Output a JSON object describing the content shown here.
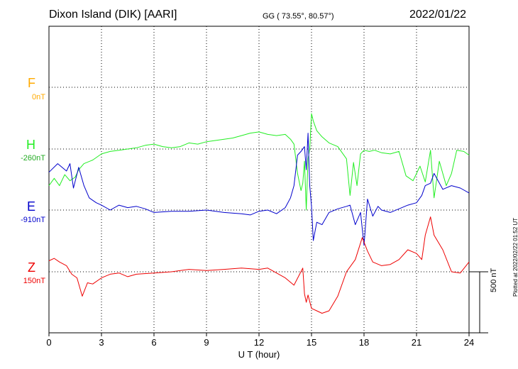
{
  "header": {
    "station": "Dixon Island (DIK)  [AARI]",
    "coords": "GG ( 73.55°,  80.57°)",
    "date": "2022/01/22"
  },
  "plotted_note": "Plotted at 2022/02/22 01:52 UT",
  "scale_label": "500 nT",
  "chart_data": {
    "type": "line",
    "title": "Dixon Island (DIK)  [AARI]",
    "xlabel": "U T (hour)",
    "xlim": [
      0,
      24
    ],
    "xticks": [
      "0",
      "3",
      "6",
      "9",
      "12",
      "15",
      "18",
      "21",
      "24"
    ],
    "scale_bar_nT": 500,
    "grid": true,
    "series": [
      {
        "name": "F",
        "baseline": "0nT",
        "color": "#ffaa00",
        "x": [],
        "y": []
      },
      {
        "name": "H",
        "baseline": "-260nT",
        "color": "#22ee22",
        "x": [
          0,
          0.3,
          0.6,
          0.9,
          1.2,
          1.5,
          1.7,
          2.0,
          2.5,
          3.0,
          3.5,
          4.0,
          4.5,
          5.0,
          5.5,
          6.0,
          6.5,
          7.0,
          7.5,
          8.0,
          8.5,
          9.0,
          9.5,
          10.0,
          10.5,
          11.0,
          11.5,
          12.0,
          12.5,
          13.0,
          13.5,
          13.8,
          14.0,
          14.2,
          14.4,
          14.5,
          14.6,
          14.7,
          14.8,
          14.9,
          15.0,
          15.1,
          15.3,
          15.6,
          16.0,
          16.5,
          17.0,
          17.2,
          17.4,
          17.6,
          17.8,
          18.0,
          18.3,
          18.6,
          19.0,
          19.5,
          20.0,
          20.4,
          20.8,
          21.2,
          21.5,
          21.8,
          22.0,
          22.3,
          22.7,
          23.0,
          23.3,
          23.7,
          24.0
        ],
        "y": [
          -300,
          -240,
          -300,
          -210,
          -260,
          -230,
          -170,
          -120,
          -90,
          -40,
          -20,
          -10,
          0,
          10,
          30,
          40,
          20,
          10,
          20,
          50,
          40,
          60,
          70,
          80,
          90,
          110,
          130,
          140,
          120,
          110,
          120,
          80,
          40,
          -200,
          -340,
          -280,
          -100,
          -500,
          -80,
          0,
          290,
          230,
          150,
          100,
          50,
          20,
          -80,
          -380,
          -110,
          -300,
          -40,
          -10,
          -20,
          -10,
          -30,
          -40,
          -20,
          -220,
          -260,
          -140,
          -270,
          -10,
          -400,
          -100,
          -300,
          -200,
          -10,
          -20,
          -50
        ]
      },
      {
        "name": "E",
        "baseline": "-910nT",
        "color": "#0000cc",
        "x": [
          0,
          0.5,
          1.0,
          1.2,
          1.4,
          1.7,
          2.0,
          2.3,
          2.7,
          3.0,
          3.5,
          4.0,
          4.5,
          5.0,
          5.5,
          6.0,
          7.0,
          8.0,
          9.0,
          10.0,
          11.0,
          11.5,
          12.0,
          12.5,
          13.0,
          13.5,
          13.8,
          14.0,
          14.2,
          14.4,
          14.6,
          14.7,
          14.8,
          14.9,
          15.0,
          15.1,
          15.3,
          15.6,
          16.0,
          16.5,
          17.0,
          17.2,
          17.5,
          17.8,
          18.0,
          18.2,
          18.5,
          18.8,
          19.0,
          19.5,
          20.0,
          20.5,
          21.0,
          21.3,
          21.5,
          21.8,
          22.0,
          22.5,
          23.0,
          23.5,
          24.0
        ],
        "y": [
          310,
          380,
          320,
          380,
          180,
          350,
          200,
          100,
          60,
          40,
          0,
          40,
          20,
          30,
          10,
          -20,
          -10,
          -10,
          0,
          -20,
          -30,
          -40,
          -10,
          0,
          -30,
          20,
          100,
          200,
          450,
          480,
          520,
          330,
          630,
          200,
          30,
          -250,
          -100,
          -120,
          -20,
          10,
          30,
          40,
          -120,
          -20,
          -290,
          90,
          -50,
          30,
          0,
          -20,
          10,
          40,
          60,
          120,
          200,
          220,
          300,
          170,
          200,
          180,
          140
        ]
      },
      {
        "name": "Z",
        "baseline": "150nT",
        "color": "#ee0000",
        "x": [
          0,
          0.3,
          0.6,
          1.0,
          1.3,
          1.6,
          1.9,
          2.2,
          2.5,
          3.0,
          3.5,
          4.0,
          4.5,
          5.0,
          6.0,
          7.0,
          8.0,
          9.0,
          10.0,
          11.0,
          12.0,
          12.5,
          13.0,
          13.5,
          14.0,
          14.5,
          14.6,
          14.7,
          14.8,
          15.0,
          15.3,
          15.6,
          16.0,
          16.5,
          17.0,
          17.5,
          17.9,
          18.2,
          18.5,
          19.0,
          19.5,
          20.0,
          20.5,
          21.0,
          21.3,
          21.5,
          21.8,
          22.0,
          22.5,
          23.0,
          23.5,
          24.0
        ],
        "y": [
          90,
          110,
          80,
          50,
          -20,
          -50,
          -200,
          -90,
          -100,
          -50,
          -20,
          -10,
          -40,
          -20,
          -10,
          0,
          20,
          10,
          20,
          30,
          20,
          30,
          -10,
          -50,
          -110,
          30,
          -180,
          -250,
          -190,
          -300,
          -320,
          -340,
          -320,
          -200,
          0,
          100,
          280,
          170,
          80,
          50,
          60,
          100,
          180,
          150,
          100,
          300,
          450,
          300,
          180,
          0,
          -10,
          80
        ]
      }
    ]
  }
}
